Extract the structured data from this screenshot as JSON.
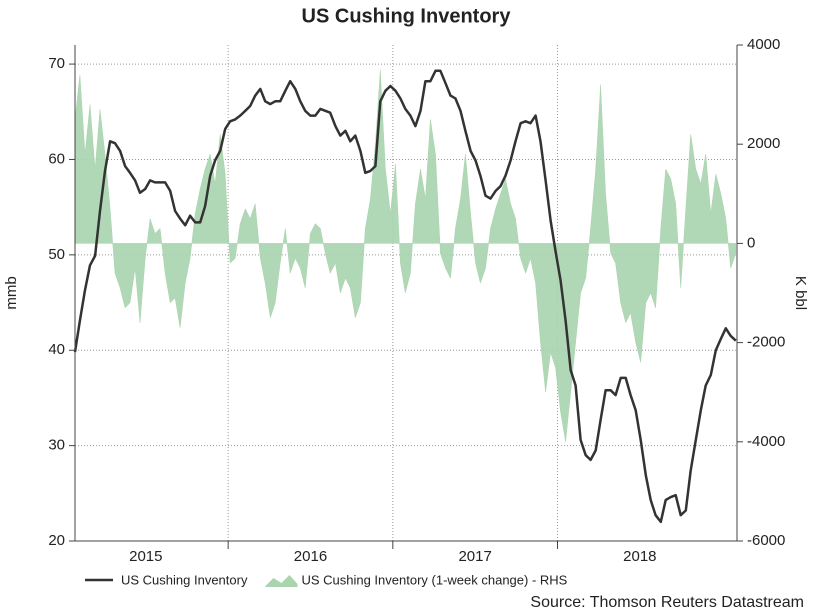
{
  "chart_data": {
    "type": "line",
    "title": "US Cushing Inventory",
    "y_label": "mmb",
    "y2_label": "K bbl",
    "source": "Source: Thomson Reuters Datastream",
    "xlim": [
      2015.07,
      2019.09
    ],
    "xticks": [
      {
        "value": 2015.5,
        "label": "2015"
      },
      {
        "value": 2016.5,
        "label": "2016"
      },
      {
        "value": 2017.5,
        "label": "2017"
      },
      {
        "value": 2018.5,
        "label": "2018"
      }
    ],
    "xgrid": [
      2016,
      2017,
      2018
    ],
    "ylim": [
      20,
      72
    ],
    "yticks": [
      20,
      30,
      40,
      50,
      60,
      70
    ],
    "y2lim": [
      -6000,
      4000
    ],
    "y2ticks": [
      -6000,
      -4000,
      -2000,
      0,
      2000,
      4000
    ],
    "grid": true,
    "legend": "bottom",
    "x": [
      2015.07,
      2015.1,
      2015.131,
      2015.161,
      2015.192,
      2015.222,
      2015.252,
      2015.283,
      2015.313,
      2015.344,
      2015.374,
      2015.404,
      2015.435,
      2015.465,
      2015.496,
      2015.526,
      2015.556,
      2015.587,
      2015.617,
      2015.648,
      2015.678,
      2015.708,
      2015.739,
      2015.769,
      2015.8,
      2015.83,
      2015.86,
      2015.891,
      2015.921,
      2015.952,
      2015.982,
      2016.012,
      2016.043,
      2016.073,
      2016.104,
      2016.134,
      2016.164,
      2016.195,
      2016.225,
      2016.256,
      2016.286,
      2016.316,
      2016.347,
      2016.377,
      2016.408,
      2016.438,
      2016.468,
      2016.499,
      2016.529,
      2016.56,
      2016.59,
      2016.62,
      2016.651,
      2016.681,
      2016.712,
      2016.742,
      2016.772,
      2016.803,
      2016.833,
      2016.864,
      2016.894,
      2016.924,
      2016.955,
      2016.985,
      2017.016,
      2017.046,
      2017.076,
      2017.107,
      2017.137,
      2017.168,
      2017.198,
      2017.228,
      2017.259,
      2017.289,
      2017.32,
      2017.35,
      2017.38,
      2017.411,
      2017.441,
      2017.472,
      2017.502,
      2017.532,
      2017.563,
      2017.593,
      2017.624,
      2017.654,
      2017.684,
      2017.715,
      2017.745,
      2017.776,
      2017.806,
      2017.836,
      2017.867,
      2017.897,
      2017.928,
      2017.958,
      2017.988,
      2018.019,
      2018.049,
      2018.08,
      2018.11,
      2018.14,
      2018.171,
      2018.201,
      2018.232,
      2018.262,
      2018.292,
      2018.323,
      2018.353,
      2018.384,
      2018.414,
      2018.444,
      2018.475,
      2018.505,
      2018.536,
      2018.566,
      2018.596,
      2018.627,
      2018.657,
      2018.688,
      2018.718,
      2018.748,
      2018.779,
      2018.809,
      2018.84,
      2018.87,
      2018.9,
      2018.931,
      2018.961,
      2018.992,
      2019.022,
      2019.052,
      2019.083
    ],
    "series": [
      {
        "name": "US Cushing Inventory",
        "color": "#333333",
        "kind": "line",
        "values": [
          39.8,
          43.1,
          46.3,
          48.9,
          49.9,
          54.6,
          58.8,
          61.9,
          61.7,
          60.9,
          59.3,
          58.6,
          57.8,
          56.5,
          56.9,
          57.8,
          57.6,
          57.6,
          57.6,
          56.7,
          54.6,
          53.8,
          53.1,
          54.1,
          53.4,
          53.4,
          55.1,
          58.3,
          59.9,
          60.9,
          63.2,
          64.0,
          64.2,
          64.6,
          65.1,
          65.6,
          66.7,
          67.4,
          66.1,
          65.8,
          66.1,
          66.1,
          67.2,
          68.2,
          67.4,
          66.1,
          65.1,
          64.6,
          64.6,
          65.3,
          65.1,
          64.9,
          63.5,
          62.5,
          63.0,
          61.9,
          62.5,
          60.9,
          58.6,
          58.8,
          59.3,
          66.1,
          67.2,
          67.7,
          67.2,
          66.4,
          65.3,
          64.6,
          63.5,
          65.1,
          68.2,
          68.2,
          69.3,
          69.3,
          68.0,
          66.7,
          66.4,
          65.1,
          63.0,
          60.9,
          59.9,
          58.3,
          56.2,
          55.9,
          56.7,
          57.2,
          58.3,
          59.9,
          61.9,
          63.8,
          64.0,
          63.8,
          64.6,
          61.9,
          57.8,
          53.6,
          50.4,
          47.3,
          43.1,
          37.9,
          36.3,
          30.6,
          29.0,
          28.5,
          29.5,
          32.7,
          35.8,
          35.8,
          35.3,
          37.1,
          37.1,
          35.3,
          33.7,
          30.6,
          26.9,
          24.3,
          22.7,
          22.0,
          24.3,
          24.6,
          24.8,
          22.7,
          23.2,
          27.4,
          30.6,
          33.7,
          36.3,
          37.4,
          40.0,
          41.2,
          42.3,
          41.5,
          41.0
        ]
      },
      {
        "name": "US Cushing Inventory (1-week change) - RHS",
        "color": "#a9d4ae",
        "kind": "area",
        "axis": "y2",
        "values": [
          2500,
          3400,
          1800,
          2800,
          1500,
          2700,
          1800,
          700,
          -600,
          -900,
          -1300,
          -1200,
          -500,
          -1600,
          -300,
          500,
          200,
          300,
          -600,
          -1200,
          -1100,
          -1700,
          -800,
          -300,
          600,
          1100,
          1500,
          1800,
          1200,
          2200,
          1400,
          -400,
          -300,
          400,
          700,
          500,
          800,
          -300,
          -800,
          -1500,
          -1200,
          -400,
          300,
          -600,
          -300,
          -500,
          -900,
          200,
          400,
          300,
          -200,
          -600,
          -400,
          -1000,
          -700,
          -900,
          -1500,
          -1200,
          300,
          900,
          2000,
          3500,
          1500,
          600,
          1600,
          -400,
          -1000,
          -600,
          800,
          1500,
          900,
          2500,
          1800,
          -200,
          -500,
          -700,
          300,
          900,
          1800,
          600,
          -400,
          -800,
          -500,
          300,
          700,
          1000,
          1300,
          800,
          500,
          -300,
          -600,
          -300,
          -800,
          -2000,
          -3000,
          -2200,
          -2500,
          -3400,
          -4000,
          -3000,
          -2000,
          -1000,
          -700,
          300,
          1500,
          3200,
          1000,
          -200,
          -400,
          -1200,
          -1600,
          -1400,
          -2000,
          -2400,
          -1200,
          -1000,
          -1300,
          300,
          1500,
          1300,
          800,
          -900,
          700,
          2200,
          1500,
          1200,
          1800,
          600,
          1400,
          1000,
          500,
          -500,
          -200
        ]
      }
    ]
  }
}
